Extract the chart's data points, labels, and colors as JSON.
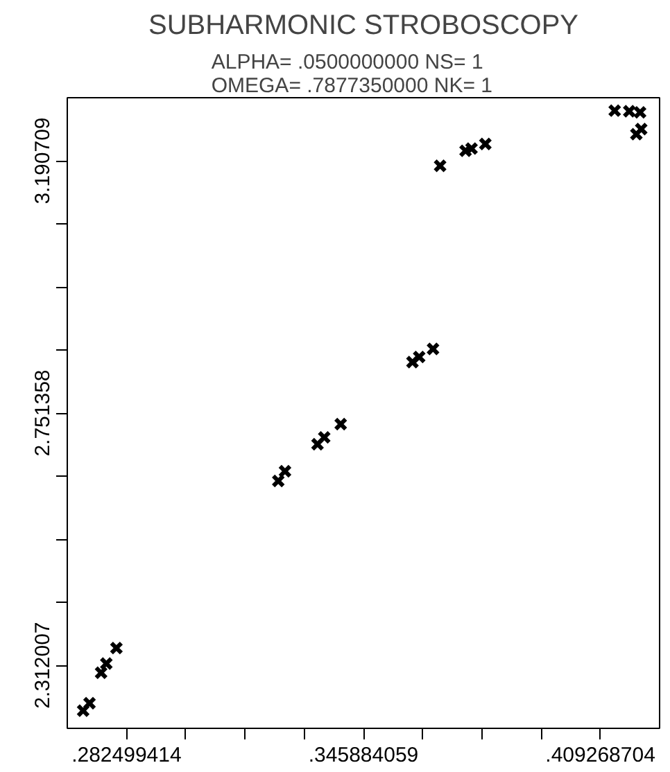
{
  "chart_data": {
    "type": "scatter",
    "title": "SUBHARMONIC STROBOSCOPY",
    "subtitle": "ALPHA=  .0500000000   NS=  1\nOMEGA=  .7877350000   NK=  1",
    "x": [
      0.2709,
      0.2726,
      0.2757,
      0.2771,
      0.2798,
      0.3231,
      0.3249,
      0.3336,
      0.3354,
      0.3398,
      0.359,
      0.3608,
      0.3645,
      0.3664,
      0.3732,
      0.3748,
      0.3785,
      0.4131,
      0.417,
      0.4199,
      0.4202,
      0.4189
    ],
    "values": [
      2.233,
      2.246,
      2.299,
      2.315,
      2.342,
      2.633,
      2.65,
      2.697,
      2.709,
      2.732,
      2.84,
      2.849,
      2.863,
      3.182,
      3.208,
      3.212,
      3.22,
      3.278,
      3.277,
      3.275,
      3.246,
      3.237
    ],
    "color": "#000000",
    "marker": "cross",
    "grid": false,
    "xlim": [
      0.266653253,
      0.425114865
    ],
    "xticks": [
      {
        "value": 0.282499414,
        "label": ".282499414"
      },
      {
        "value": 0.298345575,
        "label": null
      },
      {
        "value": 0.314191736,
        "label": null
      },
      {
        "value": 0.330037897,
        "label": null
      },
      {
        "value": 0.345884059,
        "label": ".345884059"
      },
      {
        "value": 0.36173022,
        "label": null
      },
      {
        "value": 0.377576381,
        "label": null
      },
      {
        "value": 0.393422542,
        "label": null
      },
      {
        "value": 0.409268704,
        "label": ".409268704"
      }
    ],
    "ylim": [
      2.20216925,
      3.30054675
    ],
    "yticks": [
      2.312007,
      {
        "value": 2.42184475,
        "label": null
      },
      {
        "value": 2.5316825,
        "label": null
      },
      {
        "value": 2.64152025,
        "label": null
      },
      2.751358,
      {
        "value": 2.86119575,
        "label": null
      },
      {
        "value": 2.9710335,
        "label": null
      },
      {
        "value": 3.08087125,
        "label": null
      },
      3.190709
    ]
  }
}
